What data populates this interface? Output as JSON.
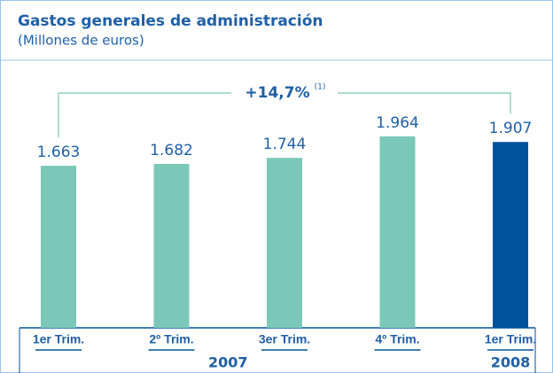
{
  "chart_data": {
    "type": "bar",
    "title": "Gastos generales de administración",
    "subtitle": "(Millones de euros)",
    "categories": [
      "1er Trim.",
      "2º Trim.",
      "3er Trim.",
      "4º Trim.",
      "1er Trim."
    ],
    "values": [
      1663,
      1682,
      1744,
      1964,
      1907
    ],
    "value_labels": [
      "1.663",
      "1.682",
      "1.744",
      "1.964",
      "1.907"
    ],
    "colors": [
      "#7cc8b8",
      "#7cc8b8",
      "#7cc8b8",
      "#7cc8b8",
      "#00529b"
    ],
    "groups": [
      {
        "label": "2007",
        "size": 4
      },
      {
        "label": "2008",
        "size": 1
      }
    ],
    "annotation": {
      "text": "+14,7%",
      "note": "(1)"
    }
  }
}
